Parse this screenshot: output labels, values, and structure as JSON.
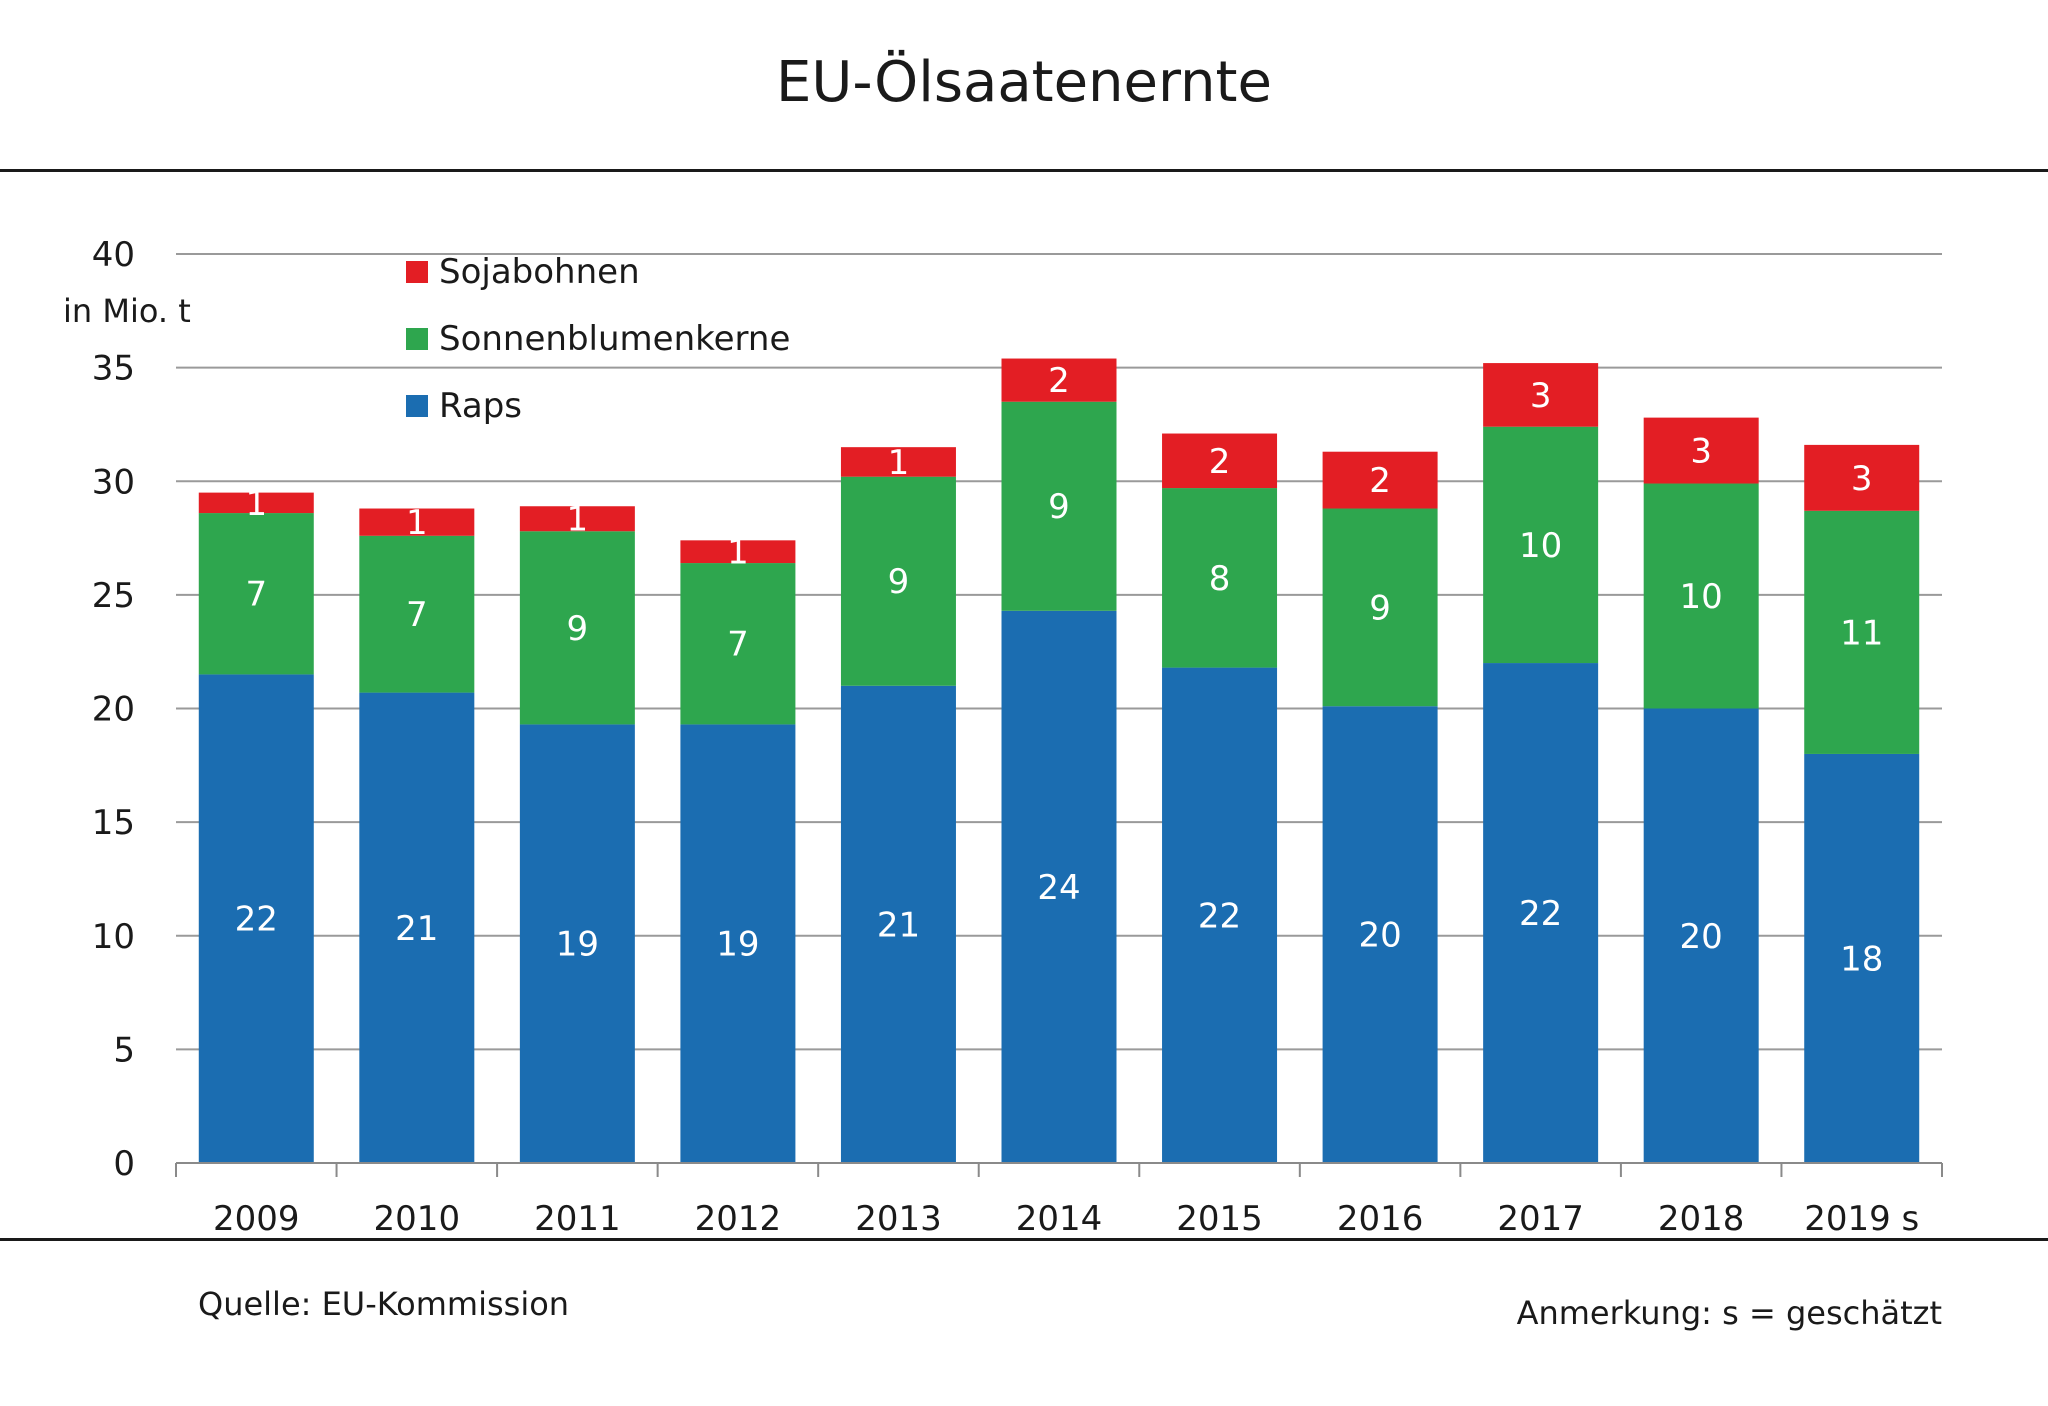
{
  "title": "EU-Ölsaatenernte",
  "source": "Quelle: EU-Kommission",
  "note": "Anmerkung: s = geschätzt",
  "chart_data": {
    "type": "bar",
    "stacked": true,
    "title": "EU-Ölsaatenernte",
    "ylabel": "in Mio. t",
    "xlabel": "",
    "ylim": [
      0,
      40
    ],
    "yticks": [
      0,
      5,
      10,
      15,
      20,
      25,
      30,
      35,
      40
    ],
    "grid": true,
    "legend_position": "top-left",
    "categories": [
      "2009",
      "2010",
      "2011",
      "2012",
      "2013",
      "2014",
      "2015",
      "2016",
      "2017",
      "2018",
      "2019 s"
    ],
    "series": [
      {
        "name": "Raps",
        "color": "#1b6db1",
        "values": [
          21.5,
          20.7,
          19.3,
          19.3,
          21.0,
          24.3,
          21.8,
          20.1,
          22.0,
          20.0,
          18.0
        ],
        "labels": [
          "22",
          "21",
          "19",
          "19",
          "21",
          "24",
          "22",
          "20",
          "22",
          "20",
          "18"
        ]
      },
      {
        "name": "Sonnenblumenkerne",
        "color": "#2ea64e",
        "values": [
          7.1,
          6.9,
          8.5,
          7.1,
          9.2,
          9.2,
          7.9,
          8.7,
          10.4,
          9.9,
          10.7
        ],
        "labels": [
          "7",
          "7",
          "9",
          "7",
          "9",
          "9",
          "8",
          "9",
          "10",
          "10",
          "11"
        ]
      },
      {
        "name": "Sojabohnen",
        "color": "#e31e24",
        "values": [
          0.9,
          1.2,
          1.1,
          1.0,
          1.3,
          1.9,
          2.4,
          2.5,
          2.8,
          2.9,
          2.9
        ],
        "labels": [
          "1",
          "1",
          "1",
          "1",
          "1",
          "2",
          "2",
          "2",
          "3",
          "3",
          "3"
        ]
      }
    ],
    "legend_order": [
      "Sojabohnen",
      "Sonnenblumenkerne",
      "Raps"
    ]
  }
}
